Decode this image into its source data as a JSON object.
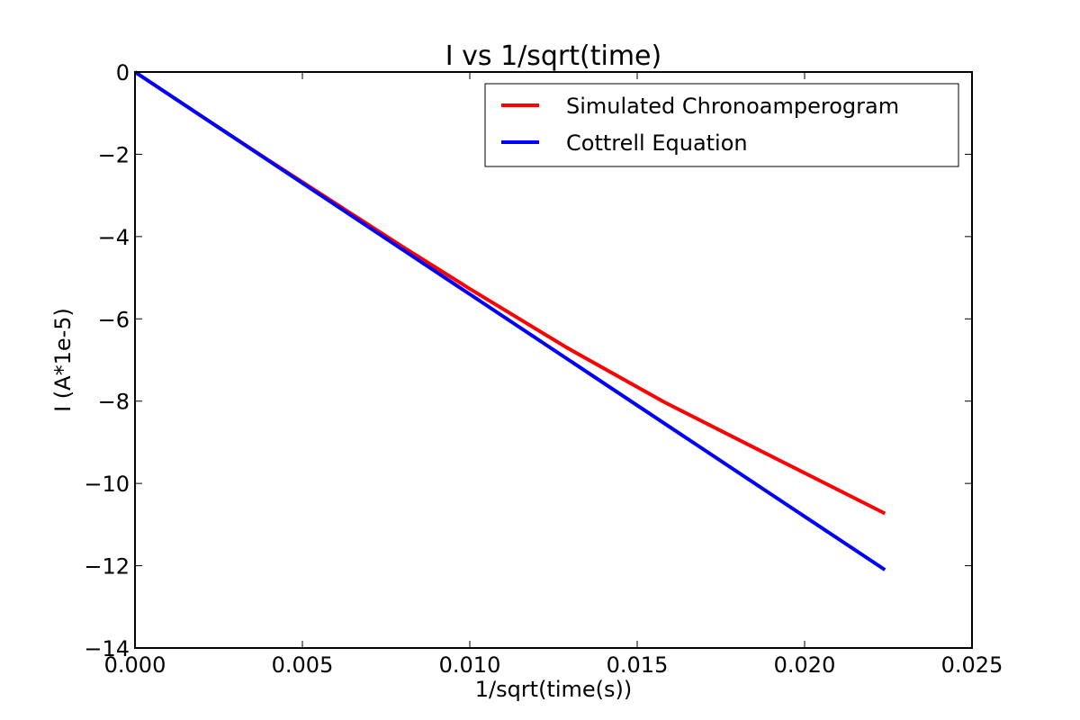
{
  "chart_data": {
    "type": "line",
    "title": "I vs 1/sqrt(time)",
    "xlabel": "1/sqrt(time(s))",
    "ylabel": "I (A*1e-5)",
    "xlim": [
      0,
      0.025
    ],
    "ylim": [
      -14,
      0
    ],
    "xticks": [
      "0.000",
      "0.005",
      "0.010",
      "0.015",
      "0.020",
      "0.025"
    ],
    "xtick_values": [
      0,
      0.005,
      0.01,
      0.015,
      0.02,
      0.025
    ],
    "yticks": [
      "0",
      "−2",
      "−4",
      "−6",
      "−8",
      "−10",
      "−12",
      "−14"
    ],
    "ytick_values": [
      0,
      -2,
      -4,
      -6,
      -8,
      -10,
      -12,
      -14
    ],
    "grid": false,
    "legend_position": "top-right",
    "series": [
      {
        "name": "Simulated Chronoamperogram",
        "color": "#ff0000",
        "x": [
          0,
          0.002,
          0.004,
          0.006,
          0.008,
          0.01,
          0.0129,
          0.0158,
          0.0183,
          0.0224
        ],
        "y": [
          0,
          -1.08,
          -2.15,
          -3.2,
          -4.25,
          -5.27,
          -6.7,
          -8.02,
          -9.05,
          -10.73
        ]
      },
      {
        "name": "Cottrell Equation",
        "color": "#0000ff",
        "x": [
          0,
          0.0224
        ],
        "y": [
          0,
          -12.1
        ]
      }
    ]
  }
}
